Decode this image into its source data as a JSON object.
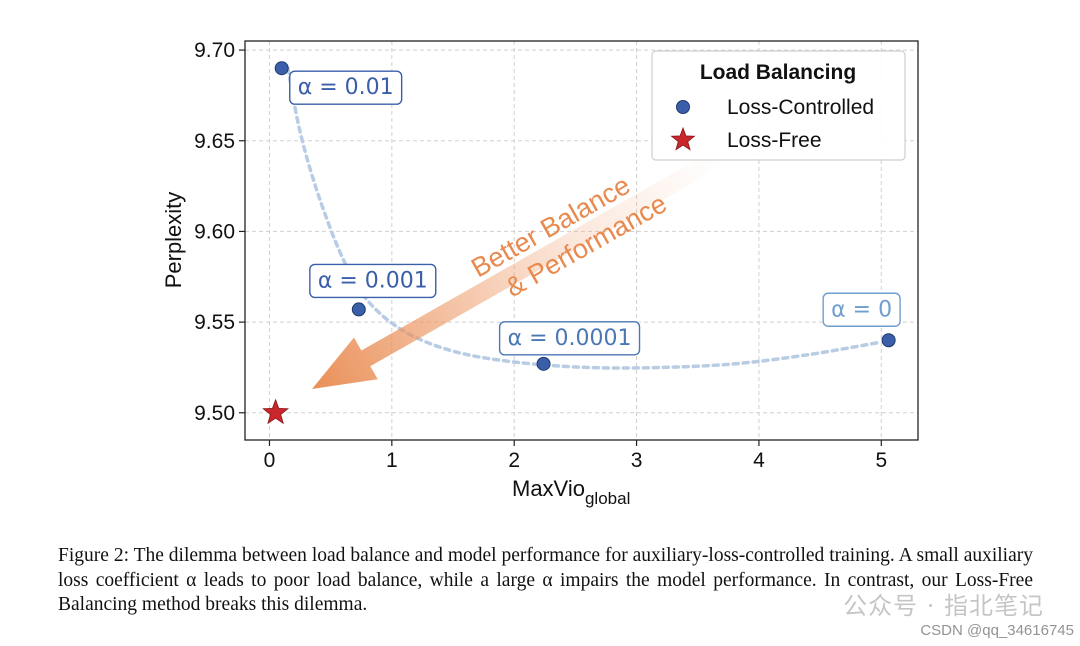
{
  "chart_data": {
    "type": "scatter",
    "xlabel_main": "MaxVio",
    "xlabel_sub": "global",
    "ylabel": "Perplexity",
    "xlim": [
      -0.2,
      5.3
    ],
    "ylim": [
      9.485,
      9.705
    ],
    "x_ticks": [
      0,
      1,
      2,
      3,
      4,
      5
    ],
    "y_ticks": [
      9.5,
      9.55,
      9.6,
      9.65,
      9.7
    ],
    "y_tick_labels": [
      "9.50",
      "9.55",
      "9.60",
      "9.65",
      "9.70"
    ],
    "grid": true,
    "series": [
      {
        "name": "Loss-Controlled",
        "marker": "circle",
        "color": "#3a5fa8",
        "points": [
          {
            "x": 0.1,
            "y": 9.69,
            "label": "α = 0.01"
          },
          {
            "x": 0.73,
            "y": 9.557,
            "label": "α = 0.001"
          },
          {
            "x": 2.24,
            "y": 9.527,
            "label": "α = 0.0001"
          },
          {
            "x": 5.06,
            "y": 9.54,
            "label": "α = 0"
          }
        ]
      },
      {
        "name": "Loss-Free",
        "marker": "star",
        "color": "#c8282c",
        "points": [
          {
            "x": 0.05,
            "y": 9.5
          }
        ]
      }
    ],
    "trend_curve": {
      "style": "dotted",
      "color": "#b8cce4",
      "points": [
        {
          "x": 0.15,
          "y": 9.69
        },
        {
          "x": 0.25,
          "y": 9.655
        },
        {
          "x": 0.4,
          "y": 9.62
        },
        {
          "x": 0.6,
          "y": 9.585
        },
        {
          "x": 0.8,
          "y": 9.562
        },
        {
          "x": 1.1,
          "y": 9.545
        },
        {
          "x": 1.5,
          "y": 9.534
        },
        {
          "x": 2.0,
          "y": 9.528
        },
        {
          "x": 2.6,
          "y": 9.525
        },
        {
          "x": 3.2,
          "y": 9.525
        },
        {
          "x": 3.8,
          "y": 9.527
        },
        {
          "x": 4.4,
          "y": 9.532
        },
        {
          "x": 5.0,
          "y": 9.539
        }
      ]
    },
    "legend": {
      "title": "Load Balancing",
      "position": "upper-right",
      "entries": [
        "Loss-Controlled",
        "Loss-Free"
      ]
    },
    "arrow_annotation": {
      "line1": "Better Balance",
      "line2": "& Performance",
      "color": "#e8894e"
    }
  },
  "caption": {
    "line1": "Figure 2: The dilemma between load balance and model performance for auxiliary-loss-controlled",
    "line2": "training. A small auxiliary loss coefficient α leads to poor load balance, while a large α impairs the",
    "line3": "model performance. In contrast, our Loss-Free Balancing method breaks this dilemma."
  },
  "watermark": "公众号 · 指北笔记",
  "credit": "CSDN @qq_34616745"
}
